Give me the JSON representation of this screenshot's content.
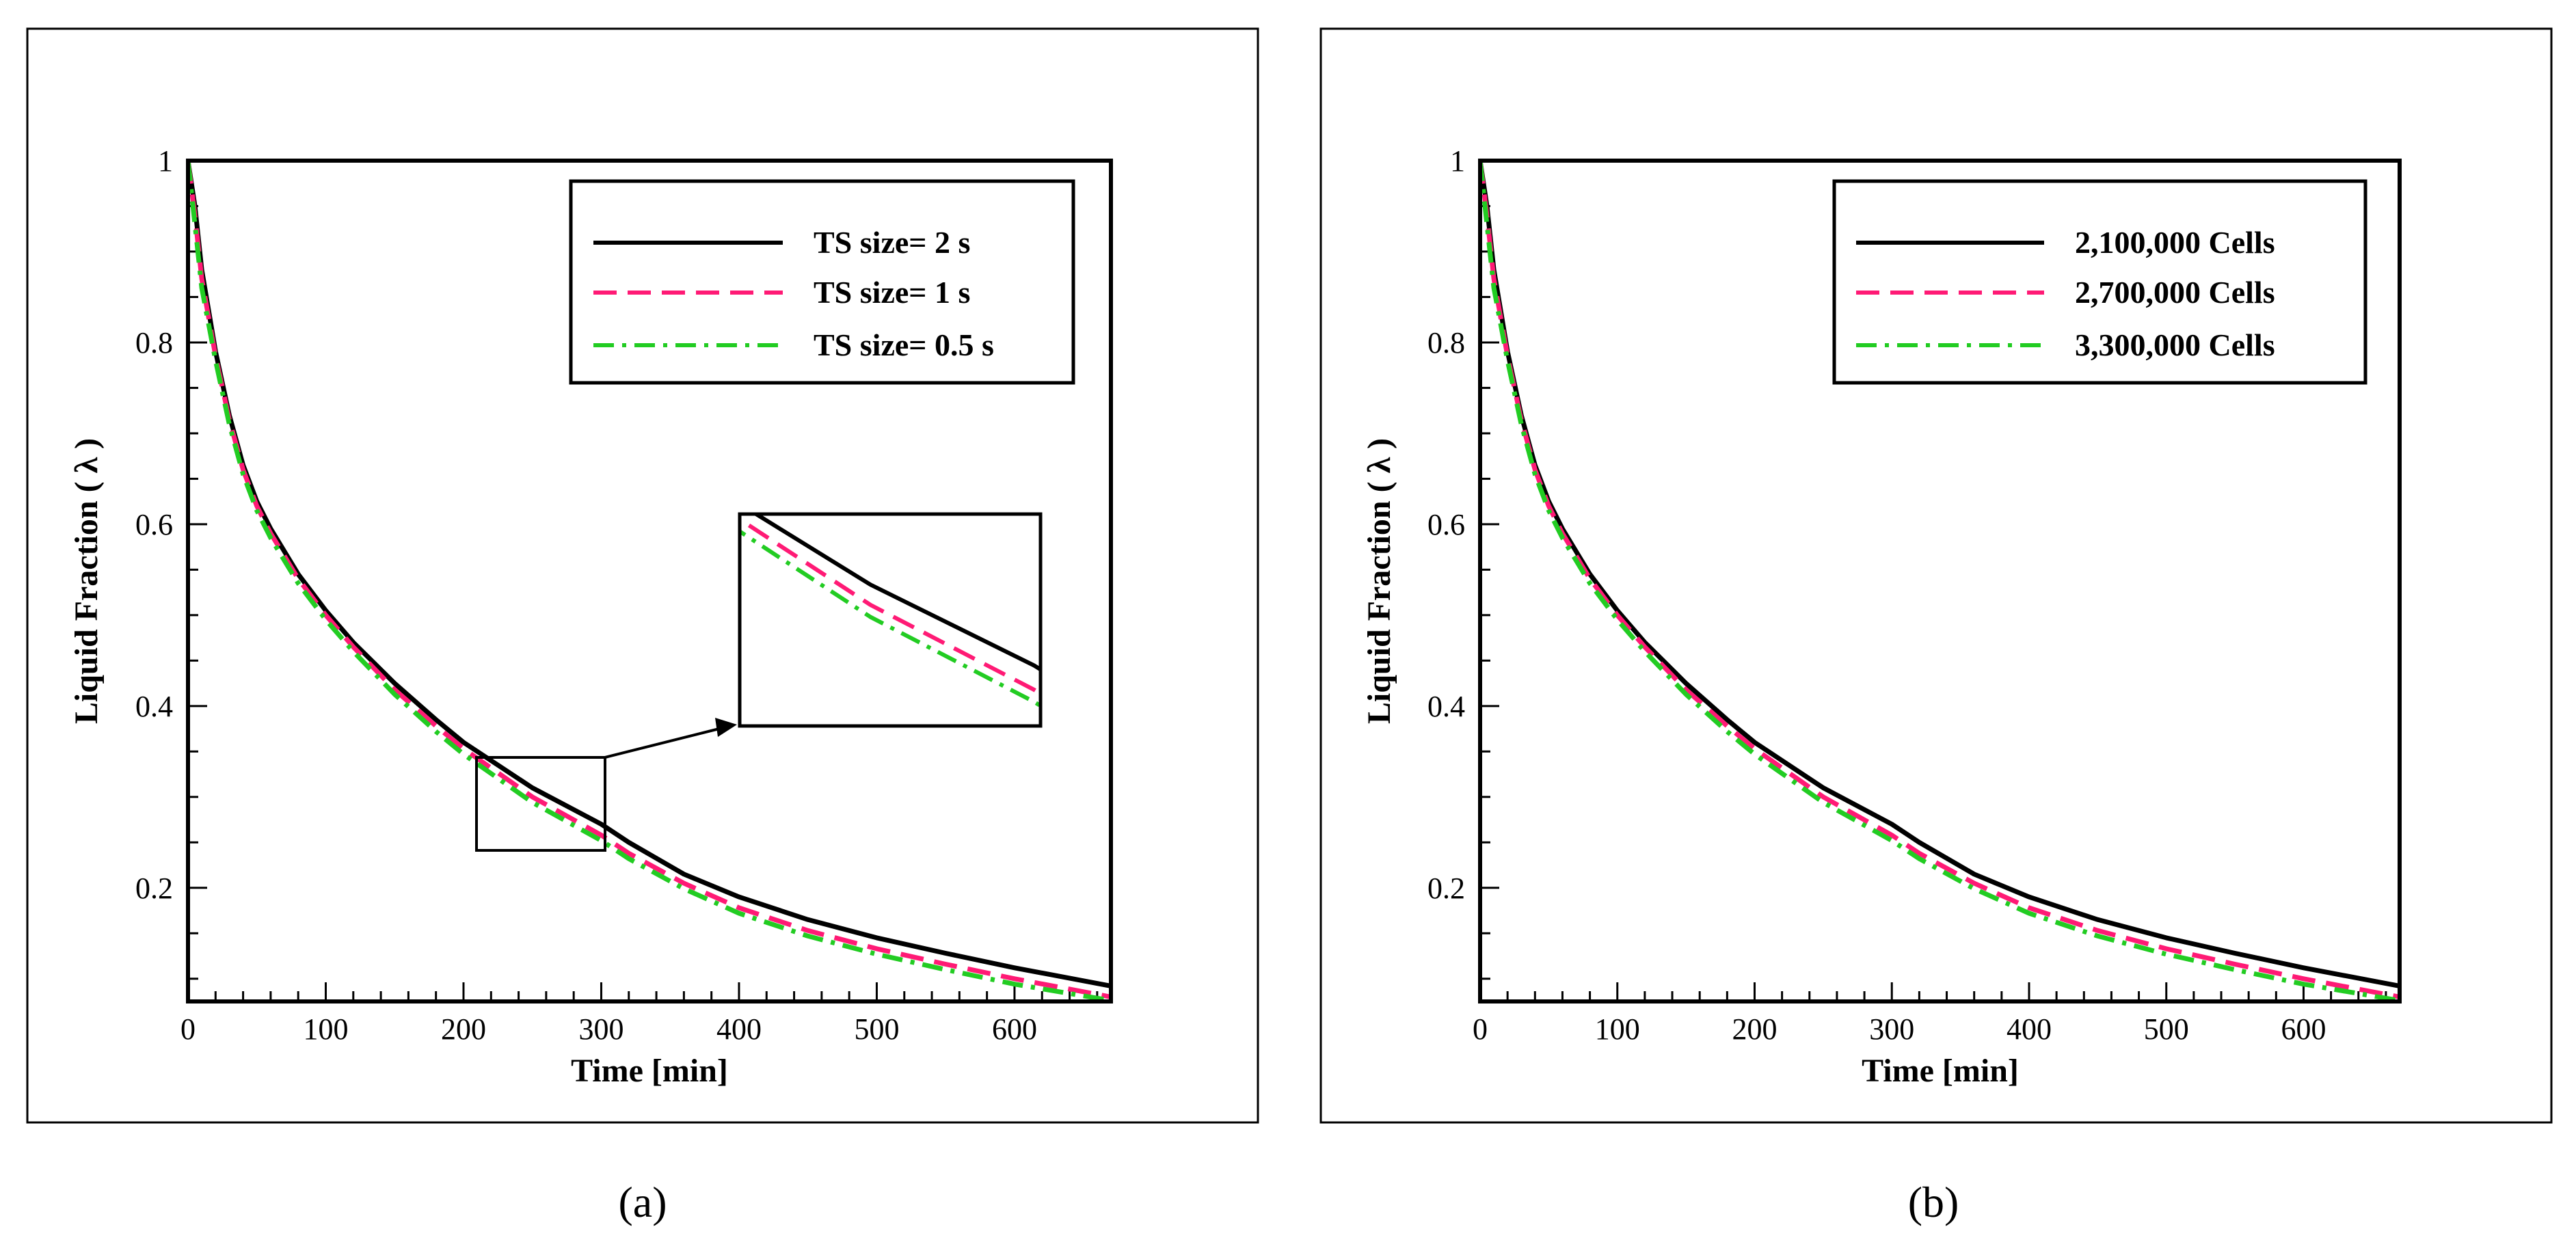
{
  "chart_data": [
    {
      "type": "line",
      "panel_caption": "(a)",
      "xlabel": "Time [min]",
      "ylabel": "Liquid Fraction ( λ )",
      "xlim": [
        0,
        670
      ],
      "ylim": [
        0.075,
        1
      ],
      "x_ticks": [
        0,
        100,
        200,
        300,
        400,
        500,
        600
      ],
      "x_tick_labels": [
        "0",
        "100",
        "200",
        "300",
        "400",
        "500",
        "600"
      ],
      "y_ticks": [
        0.2,
        0.4,
        0.6,
        0.8,
        1
      ],
      "y_tick_labels": [
        "0.2",
        "0.4",
        "0.6",
        "0.8",
        "1"
      ],
      "legend_position": "top-right",
      "x": [
        0,
        5,
        10,
        20,
        30,
        40,
        50,
        60,
        80,
        100,
        120,
        150,
        180,
        200,
        250,
        300,
        320,
        360,
        400,
        450,
        500,
        550,
        600,
        670
      ],
      "series": [
        {
          "name": "TS size= 2 s",
          "color": "#000000",
          "dash": "solid",
          "values": [
            1.0,
            0.95,
            0.88,
            0.79,
            0.72,
            0.665,
            0.625,
            0.595,
            0.545,
            0.505,
            0.47,
            0.425,
            0.385,
            0.36,
            0.31,
            0.27,
            0.25,
            0.215,
            0.19,
            0.165,
            0.145,
            0.128,
            0.112,
            0.092
          ]
        },
        {
          "name": "TS size= 1 s",
          "color": "#ff1a75",
          "dash": "dash",
          "values": [
            1.0,
            0.94,
            0.87,
            0.785,
            0.715,
            0.66,
            0.62,
            0.59,
            0.54,
            0.5,
            0.465,
            0.418,
            0.378,
            0.353,
            0.3,
            0.258,
            0.238,
            0.205,
            0.178,
            0.153,
            0.133,
            0.116,
            0.1,
            0.08
          ]
        },
        {
          "name": "TS size= 0.5 s",
          "color": "#22cc22",
          "dash": "dashdot",
          "values": [
            1.0,
            0.93,
            0.86,
            0.78,
            0.71,
            0.655,
            0.615,
            0.585,
            0.535,
            0.495,
            0.46,
            0.413,
            0.372,
            0.347,
            0.294,
            0.252,
            0.232,
            0.199,
            0.172,
            0.147,
            0.127,
            0.11,
            0.094,
            0.076
          ]
        }
      ]
    },
    {
      "type": "line",
      "panel_caption": "(b)",
      "xlabel": "Time [min]",
      "ylabel": "Liquid Fraction ( λ )",
      "xlim": [
        0,
        670
      ],
      "ylim": [
        0.075,
        1
      ],
      "x_ticks": [
        0,
        100,
        200,
        300,
        400,
        500,
        600
      ],
      "x_tick_labels": [
        "0",
        "100",
        "200",
        "300",
        "400",
        "500",
        "600"
      ],
      "y_ticks": [
        0.2,
        0.4,
        0.6,
        0.8,
        1
      ],
      "y_tick_labels": [
        "0.2",
        "0.4",
        "0.6",
        "0.8",
        "1"
      ],
      "legend_position": "top-right",
      "x": [
        0,
        5,
        10,
        20,
        30,
        40,
        50,
        60,
        80,
        100,
        120,
        150,
        180,
        200,
        250,
        300,
        320,
        360,
        400,
        450,
        500,
        550,
        600,
        670
      ],
      "series": [
        {
          "name": "2,100,000 Cells",
          "color": "#000000",
          "dash": "solid",
          "values": [
            1.0,
            0.95,
            0.88,
            0.79,
            0.72,
            0.665,
            0.625,
            0.595,
            0.545,
            0.505,
            0.47,
            0.425,
            0.385,
            0.36,
            0.31,
            0.27,
            0.25,
            0.215,
            0.19,
            0.165,
            0.145,
            0.128,
            0.112,
            0.092
          ]
        },
        {
          "name": "2,700,000 Cells",
          "color": "#ff1a75",
          "dash": "dash",
          "values": [
            1.0,
            0.94,
            0.87,
            0.785,
            0.715,
            0.66,
            0.62,
            0.59,
            0.54,
            0.5,
            0.465,
            0.418,
            0.378,
            0.353,
            0.3,
            0.258,
            0.238,
            0.205,
            0.178,
            0.153,
            0.133,
            0.116,
            0.1,
            0.08
          ]
        },
        {
          "name": "3,300,000 Cells",
          "color": "#22cc22",
          "dash": "dashdot",
          "values": [
            1.0,
            0.93,
            0.86,
            0.78,
            0.71,
            0.655,
            0.615,
            0.585,
            0.535,
            0.495,
            0.46,
            0.413,
            0.372,
            0.347,
            0.294,
            0.252,
            0.232,
            0.199,
            0.172,
            0.147,
            0.127,
            0.11,
            0.094,
            0.076
          ]
        }
      ]
    }
  ],
  "inset": {
    "panel_index": 0,
    "source_xlim": [
      210,
      302
    ],
    "source_ylim": [
      0.24,
      0.345
    ]
  }
}
